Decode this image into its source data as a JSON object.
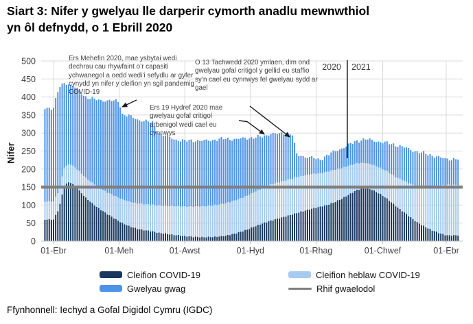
{
  "title": "Siart 3: Nifer y gwelyau lle darperir cymorth anadlu mewnwthiol yn ôl defnydd, o 1 Ebrill 2020",
  "source": "Ffynhonnell: Iechyd a Gofal Digidol Cymru (IGDC)",
  "colors": {
    "covid": "#17375E",
    "noncovid": "#A6CBEF",
    "empty": "#4D93E8",
    "baseline": "#7F7F7F",
    "grid": "#D9D9D9",
    "axis": "#BFBFBF",
    "annotation_text": "#404040",
    "arrow": "#1a1a1a"
  },
  "chart_data": {
    "type": "bar",
    "stacked": true,
    "title": "Siart 3: Nifer y gwelyau lle darperir cymorth anadlu mewnwthiol yn ôl defnydd, o 1 Ebrill 2020",
    "xlabel": "",
    "ylabel": "Nifer",
    "ylim": [
      0,
      500
    ],
    "y_ticks": [
      0,
      50,
      100,
      150,
      200,
      250,
      300,
      350,
      400,
      450,
      500
    ],
    "x_ticklabels": [
      "01-Ebr",
      "01-Meh",
      "01-Awst",
      "01-Hyd",
      "01-Rhag",
      "01-Chwef",
      "01-Ebr"
    ],
    "x_tick_days": [
      0,
      61,
      122,
      183,
      244,
      306,
      365
    ],
    "grid": true,
    "legend_position": "bottom",
    "baseline": {
      "label": "Rhif gwaelodol",
      "value": 150
    },
    "year_divider": {
      "day": 273,
      "left_label": "2020",
      "right_label": "2021"
    },
    "series_names": [
      "Cleifion COVID-19",
      "Cleifion heblaw COVID-19",
      "Gwelyau gwag"
    ],
    "series_keyframes": {
      "note": "Daily stacked bars, approximate values sampled at key dates; day 0 = 01 Ebrill 2020",
      "days": [
        0,
        5,
        10,
        15,
        21,
        30,
        40,
        50,
        61,
        64,
        70,
        77,
        85,
        92,
        98,
        106,
        113,
        122,
        130,
        140,
        150,
        160,
        170,
        180,
        188,
        195,
        201,
        208,
        215,
        222,
        226,
        233,
        240,
        247,
        254,
        261,
        268,
        275,
        282,
        289,
        296,
        303,
        310,
        317,
        324,
        331,
        338,
        345,
        352,
        359,
        365
      ],
      "cleifion_covid": [
        60,
        90,
        155,
        165,
        150,
        120,
        95,
        75,
        55,
        50,
        42,
        35,
        30,
        27,
        23,
        20,
        17,
        14,
        12,
        11,
        12,
        15,
        22,
        32,
        42,
        50,
        56,
        62,
        68,
        74,
        78,
        84,
        90,
        95,
        100,
        108,
        118,
        130,
        142,
        147,
        143,
        132,
        118,
        100,
        84,
        68,
        52,
        40,
        30,
        22,
        16
      ],
      "cleifion_heblaw": [
        50,
        50,
        50,
        50,
        52,
        55,
        58,
        60,
        65,
        66,
        68,
        70,
        72,
        74,
        76,
        78,
        80,
        82,
        84,
        86,
        88,
        90,
        92,
        94,
        96,
        98,
        100,
        100,
        100,
        100,
        100,
        98,
        96,
        93,
        92,
        90,
        85,
        80,
        74,
        70,
        70,
        72,
        76,
        80,
        86,
        92,
        100,
        110,
        122,
        132,
        140
      ],
      "gwelyau_gwag": [
        260,
        285,
        235,
        220,
        223,
        225,
        239,
        255,
        268,
        236,
        238,
        233,
        232,
        227,
        201,
        192,
        185,
        182,
        184,
        181,
        182,
        179,
        169,
        160,
        150,
        142,
        143,
        135,
        132,
        122,
        62,
        53,
        46,
        37,
        46,
        50,
        55,
        58,
        62,
        66,
        67,
        72,
        78,
        88,
        92,
        95,
        96,
        93,
        86,
        78,
        72
      ]
    },
    "annotations": [
      {
        "id": "june-2020",
        "text": "Ers Mehefin 2020, mae ysbytai wedi dechrau cau rhywfaint o’r capasiti ychwanegol a oedd wedi’i sefydlu ar gyfer cynydd yn nifer y cleifion yn sgil pandemig COVID-19"
      },
      {
        "id": "oct-19-2020",
        "text": "Ers 19 Hydref 2020 mae gwelyau gofal critigol arbenigol wedi cael eu cynnwys"
      },
      {
        "id": "nov-13-2020",
        "text": "O 13 Tachwedd 2020 ymlaen, dim ond gwelyau gofal critigol y gellid eu staffio sy’n cael eu cynnwys fel gwelyau sydd ar gael"
      }
    ]
  },
  "legend": {
    "items": [
      {
        "label": "Cleifion COVID-19",
        "color": "#17375E",
        "shape": "rect"
      },
      {
        "label": "Cleifion heblaw COVID-19",
        "color": "#A6CBEF",
        "shape": "rect"
      },
      {
        "label": "Gwelyau gwag",
        "color": "#4D93E8",
        "shape": "rect"
      },
      {
        "label": "Rhif gwaelodol",
        "color": "#7F7F7F",
        "shape": "line"
      }
    ]
  }
}
